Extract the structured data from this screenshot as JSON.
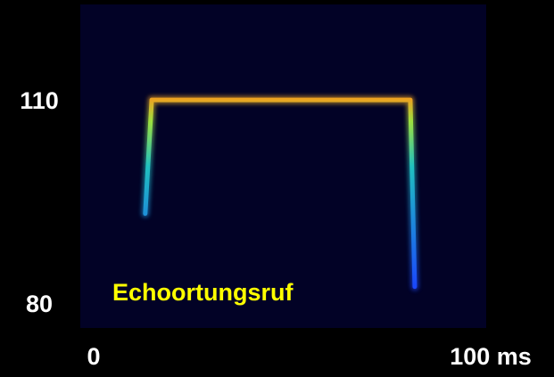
{
  "chart_data": {
    "type": "line",
    "annotation": "Echoortungsruf",
    "x": [
      16.0,
      17.6,
      81.3,
      82.4
    ],
    "series": [
      {
        "color": "#f0a020",
        "values": [
          93.6,
          110.4,
          110.4,
          82.8
        ]
      }
    ],
    "xlim": [
      0,
      100
    ],
    "xticks": [
      0,
      {
        "value": 100,
        "label": "100 ms"
      }
    ],
    "ylim": [
      76.7,
      124.5
    ],
    "yticks": [
      80,
      110
    ],
    "background": "#020226",
    "annotation_color": "#ffff00"
  }
}
